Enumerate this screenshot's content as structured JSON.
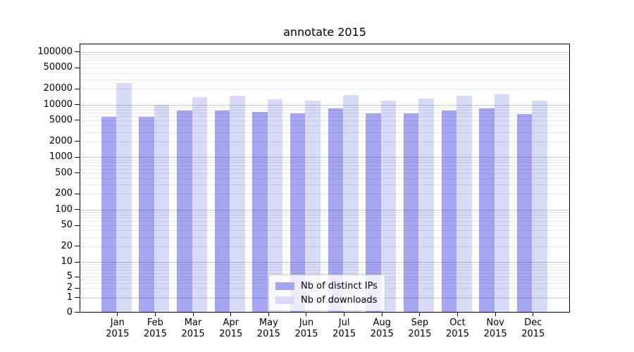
{
  "chart_data": {
    "type": "bar",
    "title": "annotate 2015",
    "scale": "symlog",
    "grid": "on",
    "legend_position": "lower center",
    "categories": [
      "Jan",
      "Feb",
      "Mar",
      "Apr",
      "May",
      "Jun",
      "Jul",
      "Aug",
      "Sep",
      "Oct",
      "Nov",
      "Dec"
    ],
    "year": "2015",
    "series": [
      {
        "name": "Nb of distinct IPs",
        "color": "#a5a5f1",
        "values": [
          5900,
          5900,
          7800,
          7700,
          7200,
          6700,
          8400,
          6900,
          6850,
          7750,
          8400,
          6600
        ]
      },
      {
        "name": "Nb of downloads",
        "color": "#d9d9f8",
        "values": [
          25500,
          9800,
          13800,
          14800,
          12700,
          11800,
          15400,
          12000,
          13000,
          14900,
          15800,
          11900
        ]
      }
    ],
    "y_ticks": [
      0,
      1,
      2,
      5,
      10,
      20,
      50,
      100,
      200,
      500,
      1000,
      2000,
      5000,
      10000,
      20000,
      50000,
      100000
    ],
    "ylim": [
      0,
      145000
    ],
    "xlabel": "",
    "ylabel": "",
    "colors": {
      "major_grid": "#cccccc",
      "minor_grid": "#e8e8e8",
      "spine": "#000000",
      "background": "#ffffff"
    }
  }
}
